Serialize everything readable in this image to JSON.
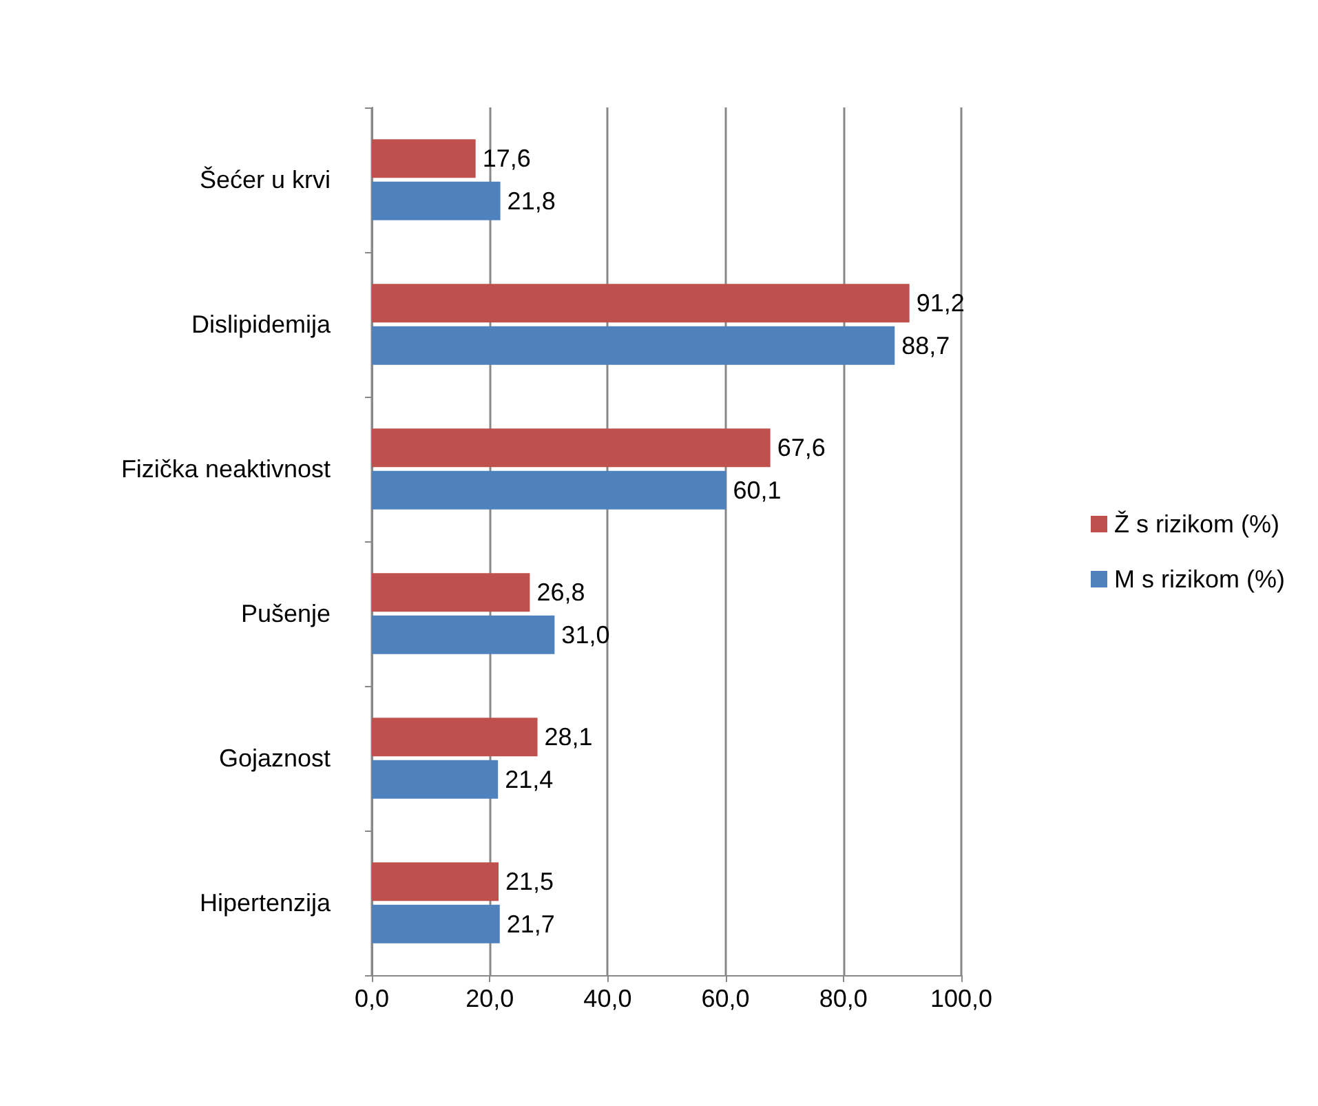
{
  "chart_data": {
    "type": "bar",
    "orientation": "horizontal",
    "categories": [
      "Šećer u krvi",
      "Dislipidemija",
      "Fizička neaktivnost",
      "Pušenje",
      "Gojaznost",
      "Hipertenzija"
    ],
    "series": [
      {
        "name": "Ž s rizikom (%)",
        "color": "#c0504d",
        "values": [
          17.6,
          91.2,
          67.6,
          26.8,
          28.1,
          21.5
        ],
        "value_labels": [
          "17,6",
          "91,2",
          "67,6",
          "26,8",
          "28,1",
          "21,5"
        ]
      },
      {
        "name": "M s rizikom (%)",
        "color": "#4f81bd",
        "values": [
          21.8,
          88.7,
          60.1,
          31.0,
          21.4,
          21.7
        ],
        "value_labels": [
          "21,8",
          "88,7",
          "60,1",
          "31,0",
          "21,4",
          "21,7"
        ]
      }
    ],
    "xlim": [
      0,
      100
    ],
    "xticks": [
      {
        "value": 0,
        "label": "0,0"
      },
      {
        "value": 20,
        "label": "20,0"
      },
      {
        "value": 40,
        "label": "40,0"
      },
      {
        "value": 60,
        "label": "60,0"
      },
      {
        "value": 80,
        "label": "80,0"
      },
      {
        "value": 100,
        "label": "100,0"
      }
    ],
    "grid": "x",
    "legend": "right"
  }
}
